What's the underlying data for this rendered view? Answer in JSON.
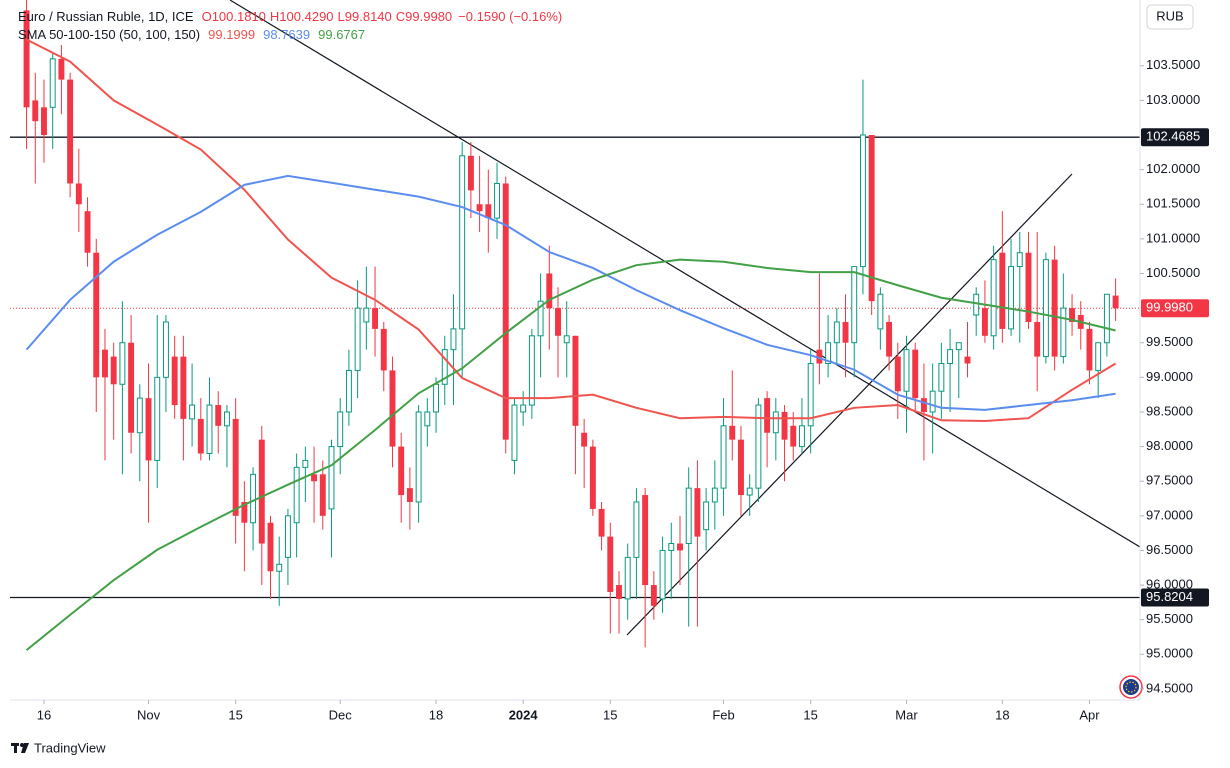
{
  "chart_data": {
    "type": "candlestick",
    "title": "Euro / Russian Ruble, 1D, ICE",
    "ohlc_labels": {
      "open": "O100.1810",
      "high": "H100.4290",
      "low": "L99.8140",
      "close": "C99.9980",
      "change": "−0.1590 (−0.16%)"
    },
    "currency": "RUB",
    "brand": "TradingView",
    "up_color": "#089981",
    "down_color": "#f23645",
    "open": [
      104.3,
      103.0,
      102.9,
      102.9,
      103.6,
      103.3,
      101.8,
      101.4,
      100.8,
      99.4,
      99.3,
      98.9,
      99.5,
      98.2,
      98.7,
      97.8,
      99.0,
      99.3,
      99.3,
      98.4,
      98.4,
      97.9,
      98.6,
      98.3,
      98.4,
      97.2,
      96.9,
      98.1,
      96.9,
      96.2,
      96.4,
      96.9,
      97.7,
      97.6,
      97.6,
      97.1,
      98.0,
      98.5,
      99.1,
      99.8,
      100.0,
      99.7,
      99.1,
      98.0,
      97.4,
      97.2,
      98.3,
      98.5,
      98.9,
      99.4,
      99.7,
      102.2,
      101.5,
      101.5,
      101.3,
      101.8,
      97.8,
      98.5,
      98.6,
      99.6,
      100.5,
      100.0,
      99.5,
      99.6,
      98.2,
      98.0,
      97.1,
      96.7,
      96.0,
      95.8,
      96.4,
      97.3,
      96.0,
      95.8,
      96.5,
      96.6,
      96.6,
      97.4,
      96.8,
      97.2,
      97.4,
      98.3,
      98.1,
      97.3,
      97.4,
      98.7,
      98.2,
      98.5,
      98.3,
      98.0,
      98.3,
      99.4,
      99.2,
      99.5,
      99.8,
      99.5,
      100.6,
      102.5,
      99.7,
      99.8,
      99.3,
      98.8,
      99.4,
      98.7,
      98.5,
      98.8,
      99.2,
      99.4,
      99.3,
      99.9,
      100.0,
      99.6,
      100.8,
      99.7,
      100.6,
      100.8,
      99.8,
      99.3,
      100.7,
      99.3,
      100.0,
      99.9,
      99.7,
      99.1,
      99.5,
      100.181
    ],
    "high": [
      104.5,
      103.4,
      103.3,
      103.7,
      103.8,
      103.4,
      102.3,
      101.6,
      101.0,
      99.7,
      99.5,
      100.1,
      99.9,
      98.9,
      99.2,
      99.9,
      99.9,
      99.6,
      99.6,
      99.2,
      98.7,
      99.0,
      98.8,
      98.6,
      98.7,
      97.5,
      97.7,
      98.3,
      97.0,
      96.7,
      97.1,
      97.9,
      98.0,
      98.0,
      97.8,
      98.1,
      98.7,
      99.4,
      100.4,
      100.6,
      100.6,
      99.8,
      99.3,
      98.2,
      97.7,
      98.6,
      98.7,
      99.0,
      99.6,
      100.2,
      102.4,
      102.4,
      102.2,
      102.0,
      102.1,
      101.9,
      98.7,
      98.8,
      99.7,
      100.5,
      100.9,
      100.3,
      100.1,
      99.6,
      98.4,
      98.1,
      97.2,
      96.9,
      96.2,
      96.6,
      97.4,
      97.4,
      96.2,
      96.7,
      96.9,
      97.0,
      97.7,
      97.8,
      97.4,
      97.8,
      98.7,
      99.1,
      98.3,
      97.6,
      98.7,
      98.8,
      98.7,
      98.6,
      98.5,
      98.7,
      99.4,
      100.5,
      99.9,
      100.0,
      100.2,
      100.6,
      103.3,
      102.5,
      100.3,
      99.9,
      99.5,
      99.6,
      99.5,
      99.2,
      99.2,
      99.5,
      99.7,
      99.5,
      99.8,
      100.3,
      100.4,
      100.9,
      101.4,
      101.0,
      101.1,
      101.1,
      101.1,
      100.8,
      100.9,
      100.5,
      100.2,
      100.1,
      99.8,
      99.5,
      100.2,
      100.429
    ],
    "low": [
      102.3,
      101.8,
      102.1,
      102.3,
      102.8,
      101.6,
      101.1,
      100.6,
      98.5,
      97.8,
      98.1,
      97.6,
      97.9,
      97.5,
      96.9,
      97.4,
      98.5,
      98.4,
      97.8,
      98.0,
      97.8,
      97.8,
      97.9,
      97.7,
      96.6,
      96.2,
      96.5,
      96.0,
      95.8,
      95.7,
      96.0,
      96.4,
      97.2,
      96.9,
      96.8,
      96.4,
      97.6,
      98.3,
      98.7,
      99.4,
      99.3,
      98.8,
      97.7,
      96.9,
      96.8,
      96.9,
      98.0,
      98.2,
      98.6,
      98.6,
      99.0,
      101.3,
      101.1,
      100.8,
      101.0,
      97.9,
      97.6,
      98.3,
      98.4,
      99.0,
      99.4,
      99.0,
      99.0,
      97.6,
      97.4,
      97.0,
      96.5,
      95.3,
      95.3,
      95.5,
      95.8,
      95.1,
      95.5,
      95.6,
      95.8,
      96.0,
      95.4,
      95.4,
      96.5,
      96.8,
      97.0,
      97.8,
      97.0,
      97.0,
      97.2,
      97.7,
      97.8,
      97.5,
      97.8,
      97.9,
      97.9,
      98.9,
      99.0,
      99.2,
      99.0,
      99.0,
      100.2,
      99.9,
      99.4,
      99.1,
      98.4,
      98.2,
      98.5,
      97.8,
      97.9,
      98.4,
      98.5,
      98.7,
      99.0,
      99.6,
      99.5,
      99.4,
      99.5,
      99.6,
      99.5,
      99.7,
      98.8,
      99.2,
      99.1,
      99.2,
      99.6,
      99.4,
      98.9,
      98.7,
      99.3,
      99.814
    ],
    "close": [
      102.9,
      102.7,
      102.5,
      103.6,
      103.3,
      101.8,
      101.5,
      100.8,
      99.0,
      99.0,
      98.9,
      99.5,
      98.2,
      98.7,
      97.8,
      99.0,
      99.8,
      98.6,
      98.4,
      98.6,
      97.9,
      98.6,
      98.3,
      98.5,
      97.0,
      96.9,
      97.6,
      96.6,
      96.2,
      96.3,
      97.0,
      97.7,
      97.8,
      97.5,
      97.0,
      98.0,
      98.5,
      99.1,
      100.0,
      100.0,
      99.7,
      99.1,
      98.0,
      97.3,
      97.2,
      98.5,
      98.5,
      98.9,
      99.4,
      99.7,
      102.2,
      101.7,
      101.4,
      101.3,
      101.8,
      98.1,
      98.6,
      98.6,
      99.6,
      100.1,
      100.0,
      99.6,
      99.6,
      98.3,
      98.0,
      97.1,
      96.7,
      95.9,
      95.8,
      96.4,
      97.2,
      96.0,
      95.7,
      96.5,
      96.6,
      96.5,
      97.4,
      96.7,
      97.2,
      97.4,
      98.3,
      98.1,
      97.3,
      97.4,
      98.6,
      98.2,
      98.5,
      98.1,
      98.0,
      98.3,
      99.2,
      99.2,
      99.5,
      99.8,
      99.5,
      100.6,
      102.5,
      100.1,
      100.2,
      99.3,
      98.8,
      99.4,
      98.7,
      98.5,
      98.8,
      99.2,
      99.4,
      99.5,
      99.2,
      100.2,
      99.6,
      100.7,
      99.7,
      100.6,
      100.8,
      99.8,
      99.3,
      100.7,
      99.3,
      100.0,
      99.8,
      99.7,
      99.1,
      99.5,
      100.2,
      99.998
    ],
    "xlim": [
      -1.9,
      127.8
    ],
    "xticks": [
      {
        "value": 2,
        "label": "16"
      },
      {
        "value": 14,
        "label": "Nov"
      },
      {
        "value": 24,
        "label": "15"
      },
      {
        "value": 36,
        "label": "Dec"
      },
      {
        "value": 47,
        "label": "18"
      },
      {
        "value": 57,
        "label": "2024",
        "bold": true
      },
      {
        "value": 67,
        "label": "15"
      },
      {
        "value": 80,
        "label": "Feb"
      },
      {
        "value": 90,
        "label": "15"
      },
      {
        "value": 101,
        "label": "Mar"
      },
      {
        "value": 112,
        "label": "18"
      },
      {
        "value": 122,
        "label": "Apr"
      }
    ],
    "ylim": [
      94.34,
      104.45
    ],
    "yticks": [
      {
        "value": 94.5,
        "label": "94.5000"
      },
      {
        "value": 95,
        "label": "95.0000"
      },
      {
        "value": 95.5,
        "label": "95.5000"
      },
      {
        "value": 96,
        "label": "96.0000"
      },
      {
        "value": 96.5,
        "label": "96.5000"
      },
      {
        "value": 97,
        "label": "97.0000"
      },
      {
        "value": 97.5,
        "label": "97.5000"
      },
      {
        "value": 98,
        "label": "98.0000"
      },
      {
        "value": 98.5,
        "label": "98.5000"
      },
      {
        "value": 99,
        "label": "99.0000"
      },
      {
        "value": 99.5,
        "label": "99.5000"
      },
      {
        "value": 100.5,
        "label": "100.5000"
      },
      {
        "value": 101,
        "label": "101.0000"
      },
      {
        "value": 101.5,
        "label": "101.5000"
      },
      {
        "value": 102,
        "label": "102.0000"
      },
      {
        "value": 103,
        "label": "103.0000"
      },
      {
        "value": 103.5,
        "label": "103.5000"
      }
    ],
    "grid": false,
    "hlines": [
      {
        "value": 102.4685,
        "label": "102.4685"
      },
      {
        "value": 95.8204,
        "label": "95.8204"
      }
    ],
    "last_price": {
      "value": 99.998,
      "label": "99.9980"
    },
    "sma": {
      "title": "SMA 50-100-150 (50, 100, 150)",
      "x": [
        0,
        5,
        10,
        15,
        20,
        25,
        30,
        35,
        40,
        45,
        50,
        55,
        60,
        65,
        70,
        75,
        80,
        85,
        90,
        95,
        100,
        105,
        110,
        115,
        120,
        125
      ],
      "series": [
        {
          "color": "#f0544f",
          "last_label": "99.1999",
          "values": [
            103.88,
            103.56,
            103.0,
            102.65,
            102.29,
            101.71,
            100.99,
            100.44,
            100.12,
            99.69,
            98.99,
            98.7,
            98.7,
            98.75,
            98.56,
            98.41,
            98.43,
            98.41,
            98.41,
            98.56,
            98.6,
            98.38,
            98.37,
            98.41,
            98.82,
            99.1999
          ]
        },
        {
          "color": "#5b8def",
          "last_label": "98.7639",
          "values": [
            99.4,
            100.12,
            100.67,
            101.06,
            101.39,
            101.78,
            101.91,
            101.81,
            101.71,
            101.61,
            101.46,
            101.2,
            100.81,
            100.58,
            100.26,
            99.97,
            99.71,
            99.47,
            99.32,
            99.11,
            98.75,
            98.56,
            98.53,
            98.6,
            98.67,
            98.7639
          ]
        },
        {
          "color": "#43a047",
          "last_label": "99.6767",
          "values": [
            95.06,
            95.57,
            96.07,
            96.51,
            96.84,
            97.16,
            97.45,
            97.73,
            98.24,
            98.77,
            99.13,
            99.64,
            100.12,
            100.41,
            100.62,
            100.7,
            100.67,
            100.58,
            100.52,
            100.52,
            100.33,
            100.15,
            100.05,
            99.95,
            99.83,
            99.6767
          ]
        }
      ]
    }
  }
}
